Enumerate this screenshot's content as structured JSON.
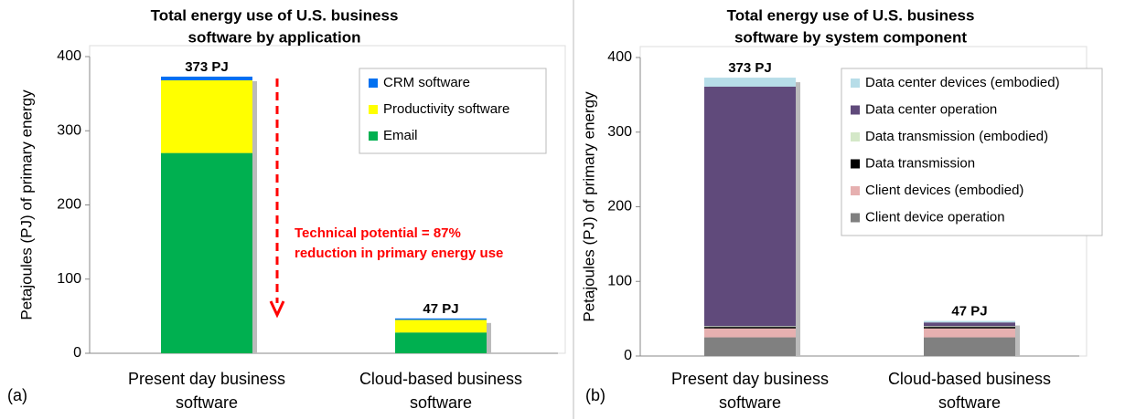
{
  "chart_data": [
    {
      "type": "stacked_bar",
      "title": [
        "Total energy use of U.S. business",
        "software by application"
      ],
      "panel_label": "(a)",
      "ylabel": "Petajoules (PJ) of primary energy",
      "categories": [
        [
          "Present day business",
          "software"
        ],
        [
          "Cloud-based business",
          "software"
        ]
      ],
      "series": [
        {
          "name": "Email",
          "color": "#00b050",
          "values": [
            270,
            28
          ]
        },
        {
          "name": "Productivity software",
          "color": "#ffff00",
          "values": [
            98,
            17
          ]
        },
        {
          "name": "CRM software",
          "color": "#0070f0",
          "values": [
            5,
            2
          ]
        }
      ],
      "total_labels": [
        "373 PJ",
        "47 PJ"
      ],
      "annotation": [
        "Technical potential  = 87%",
        "reduction in primary energy use"
      ],
      "ylim": [
        0,
        400
      ],
      "yticks": [
        0,
        100,
        200,
        300,
        400
      ],
      "legend": "upper right"
    },
    {
      "type": "stacked_bar",
      "title": [
        "Total energy use of U.S. business",
        "software by system component"
      ],
      "panel_label": "(b)",
      "ylabel": "Petajoules (PJ) of primary energy",
      "categories": [
        [
          "Present day business",
          "software"
        ],
        [
          "Cloud-based business",
          "software"
        ]
      ],
      "series": [
        {
          "name": "Client device operation",
          "color": "#808080",
          "values": [
            25,
            25
          ]
        },
        {
          "name": "Client devices (embodied)",
          "color": "#e6b0b0",
          "values": [
            12,
            12
          ]
        },
        {
          "name": "Data transmission",
          "color": "#000000",
          "values": [
            2,
            2
          ]
        },
        {
          "name": "Data transmission (embodied)",
          "color": "#d4e8c8",
          "values": [
            1,
            1
          ]
        },
        {
          "name": "Data center operation",
          "color": "#604a7b",
          "values": [
            321,
            5
          ]
        },
        {
          "name": "Data center devices (embodied)",
          "color": "#b7dde8",
          "values": [
            12,
            2
          ]
        }
      ],
      "total_labels": [
        "373 PJ",
        "47 PJ"
      ],
      "ylim": [
        0,
        400
      ],
      "yticks": [
        0,
        100,
        200,
        300,
        400
      ],
      "legend": "upper right"
    }
  ]
}
